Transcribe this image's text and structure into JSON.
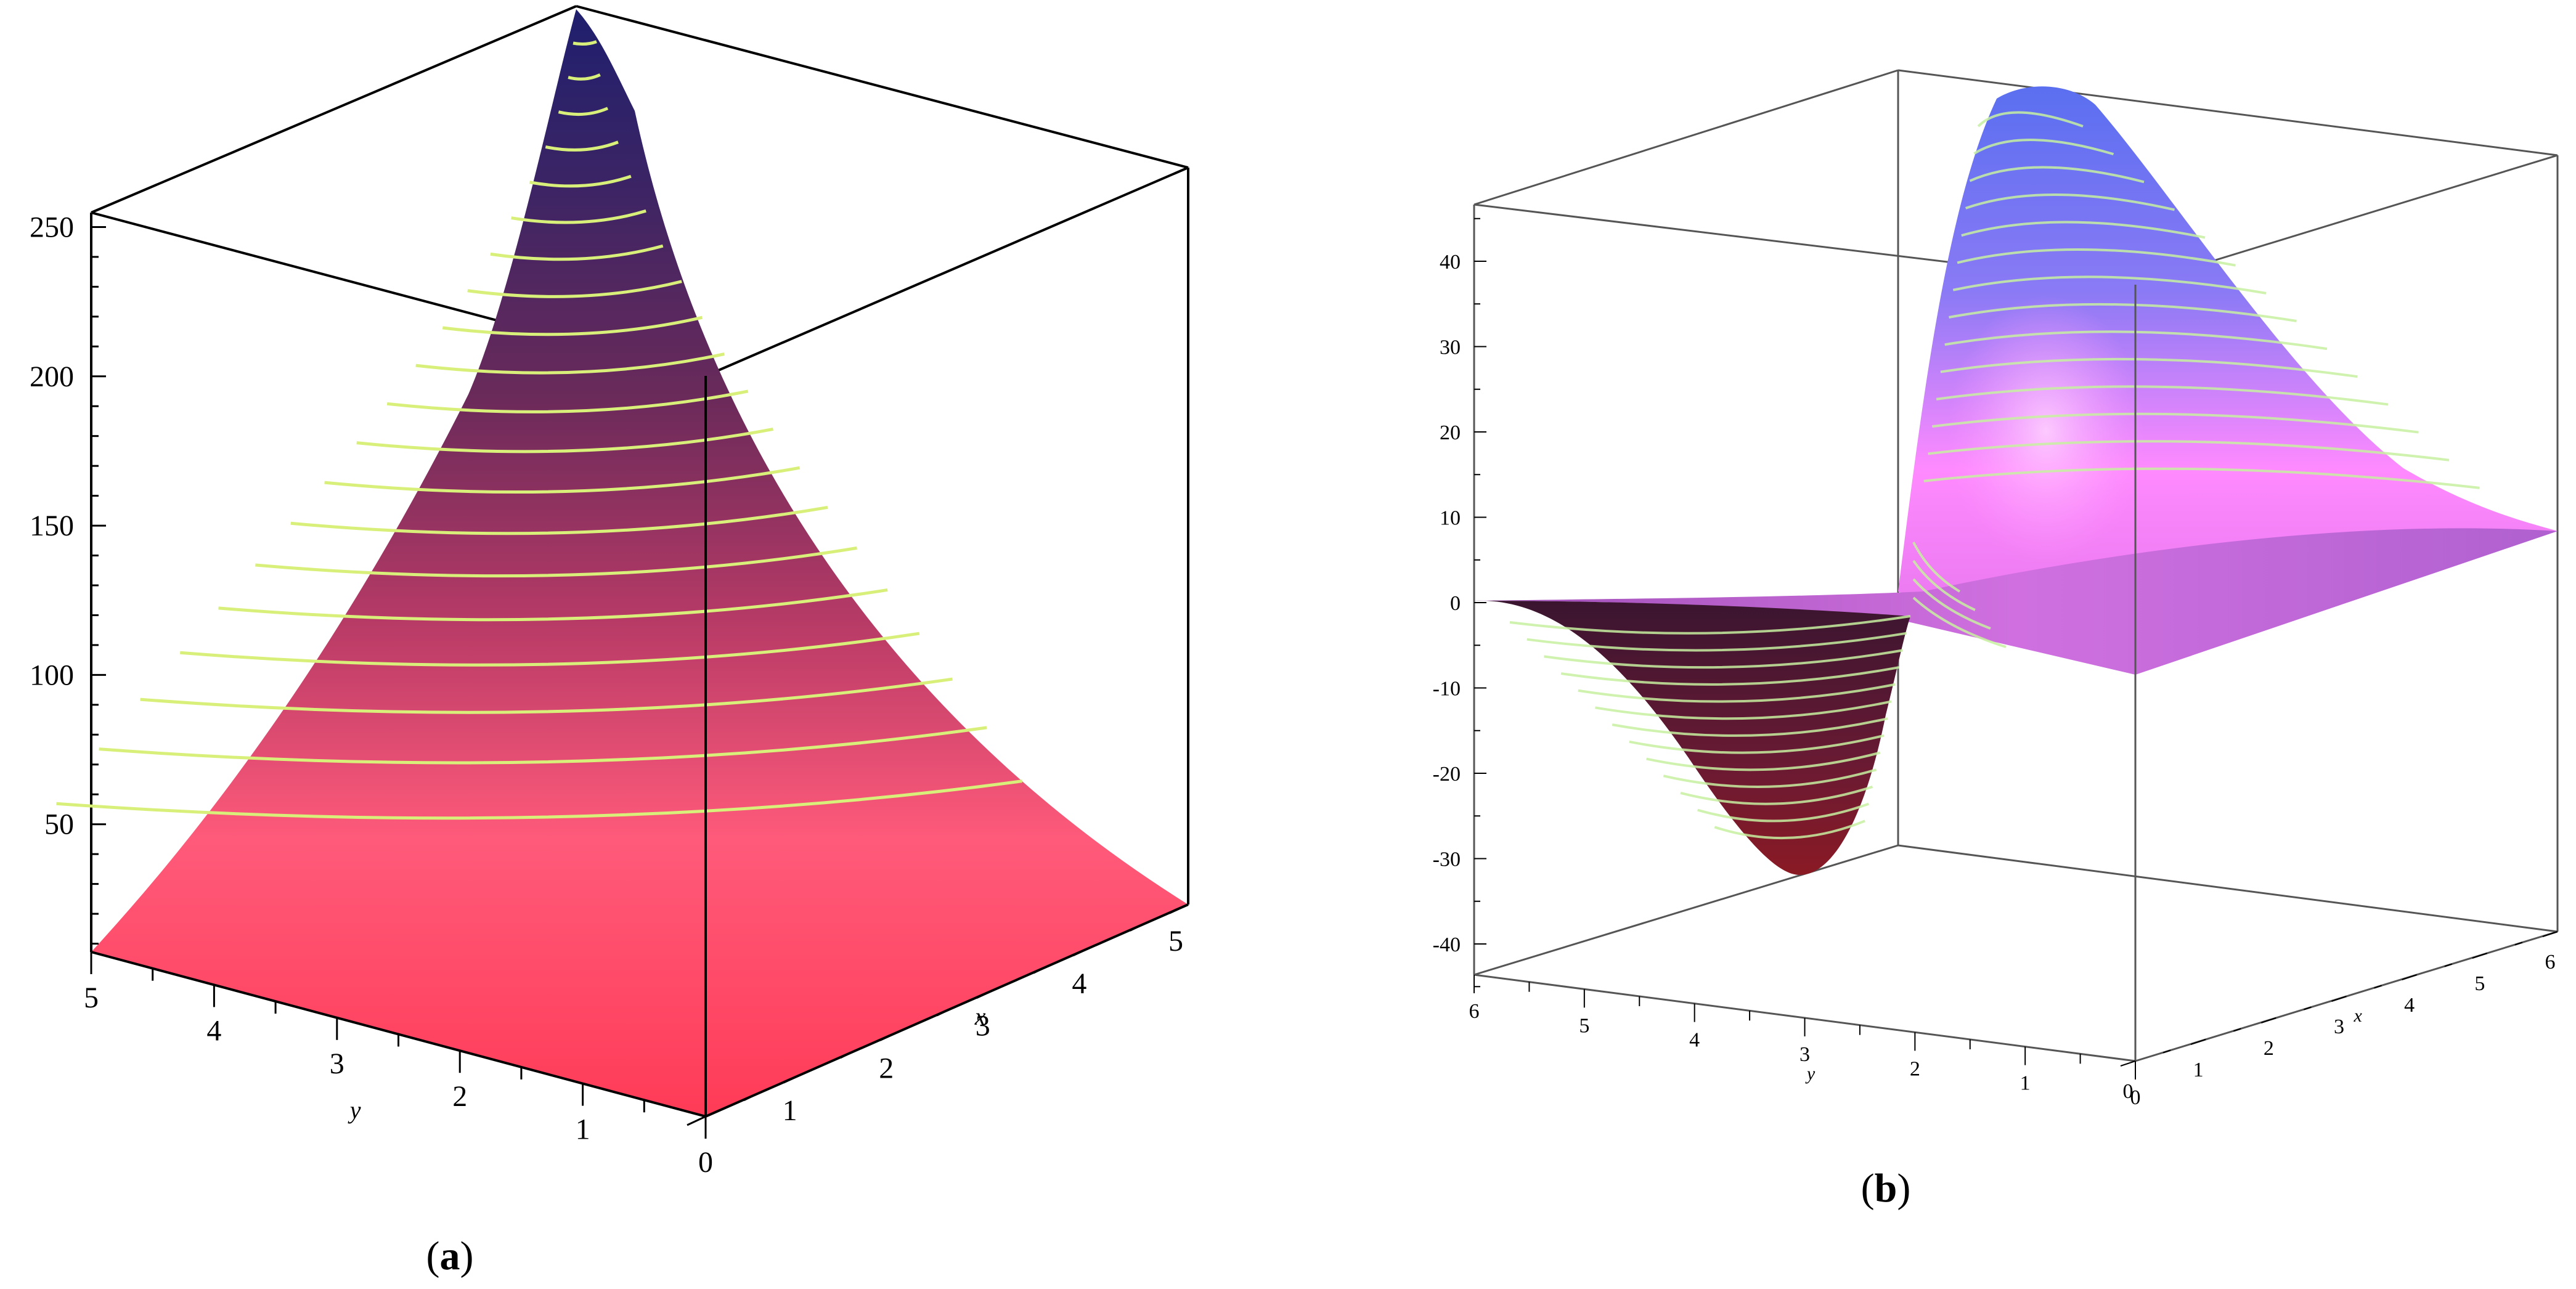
{
  "figure": {
    "panels": [
      "a",
      "b"
    ]
  },
  "chart_data": [
    {
      "type": "surface3d",
      "panel_label": "a",
      "caption_open": "(",
      "caption_letter": "a",
      "caption_close": ")",
      "axes": {
        "x": {
          "label": "x",
          "range": [
            0,
            5
          ],
          "ticks": [
            "0",
            "1",
            "2",
            "3",
            "4",
            "5"
          ]
        },
        "y": {
          "label": "y",
          "range": [
            0,
            5
          ],
          "ticks": [
            "0",
            "1",
            "2",
            "3",
            "4",
            "5"
          ]
        },
        "z": {
          "label": "",
          "range": [
            0,
            250
          ],
          "ticks": [
            "50",
            "100",
            "150",
            "200",
            "250"
          ]
        }
      },
      "surface": {
        "description": "z rises steeply toward x=5, y=5",
        "z_at_corner_55": 250,
        "contour_step": 10
      },
      "colors": {
        "low": "#ff3b57",
        "mid": "#c93a6b",
        "high": "#1f1f6e",
        "contour": "#d8f07a",
        "box": "#000000"
      }
    },
    {
      "type": "surface3d",
      "panel_label": "b",
      "caption_open": "(",
      "caption_letter": "b",
      "caption_close": ")",
      "axes": {
        "x": {
          "label": "x",
          "range": [
            0,
            6
          ],
          "ticks": [
            "0",
            "1",
            "2",
            "3",
            "4",
            "5",
            "6"
          ]
        },
        "y": {
          "label": "y",
          "range": [
            0,
            6
          ],
          "ticks": [
            "0",
            "1",
            "2",
            "3",
            "4",
            "5",
            "6"
          ]
        },
        "z": {
          "label": "",
          "range": [
            -45,
            45
          ],
          "ticks": [
            "-40",
            "-30",
            "-20",
            "-10",
            "0",
            "10",
            "20",
            "30",
            "40"
          ]
        }
      },
      "surface": {
        "description": "positive lobe up to about 45 and negative lobe down to about -33, flat near 0 elsewhere",
        "peak": 45,
        "trough": -33
      },
      "colors": {
        "positive_top": "#5a6ff0",
        "positive_mid": "#ff88ff",
        "flat": "#cf6bd8",
        "negative_top": "#6a1a33",
        "negative_bottom": "#8a1a24",
        "contour": "#c7f0a0",
        "box": "#555555"
      }
    }
  ]
}
